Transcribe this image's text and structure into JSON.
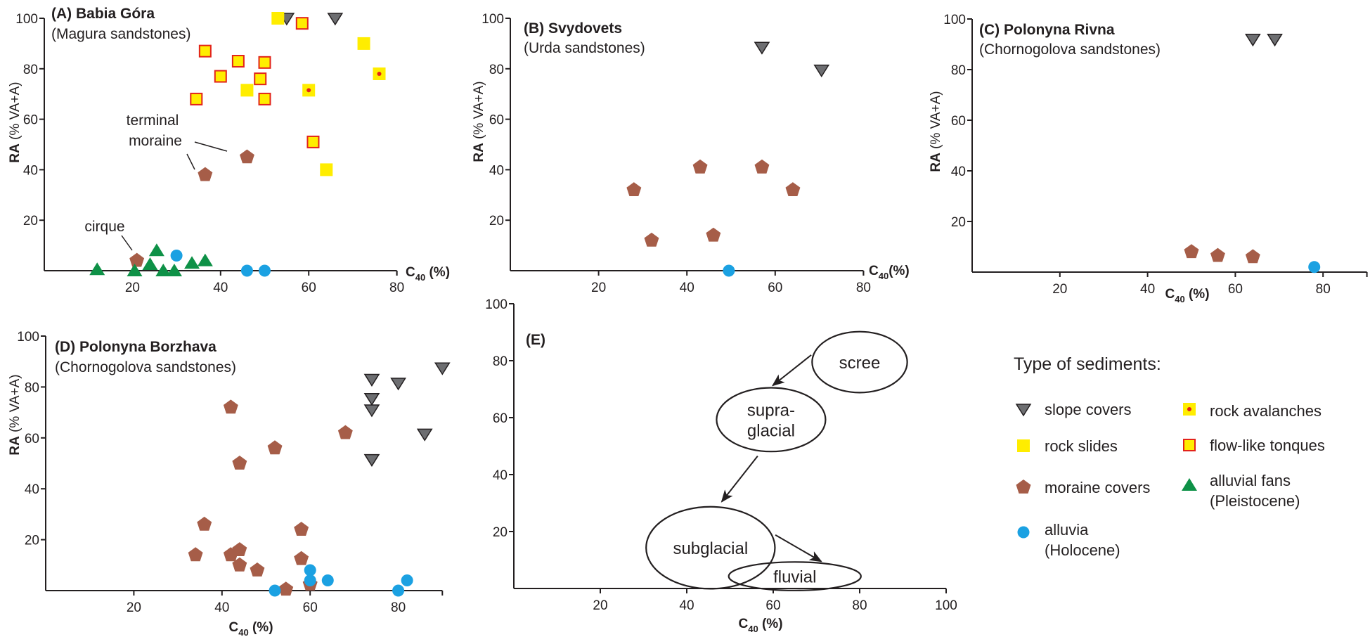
{
  "legend": {
    "title": "Type of sediments:",
    "items": [
      {
        "name": "slope covers",
        "label": [
          "slope covers"
        ],
        "marker": "triangle-down",
        "fill": "#6D6E71",
        "stroke": "#231F20"
      },
      {
        "name": "rock slides",
        "label": [
          "rock slides"
        ],
        "marker": "square",
        "fill": "#FFED00"
      },
      {
        "name": "moraine covers",
        "label": [
          "moraine covers"
        ],
        "marker": "pentagon",
        "fill": "#A65D48"
      },
      {
        "name": "alluvia",
        "label": [
          "alluvia",
          "(Holocene)"
        ],
        "marker": "circle",
        "fill": "#1BA1E2"
      },
      {
        "name": "rock avalanches",
        "label": [
          "rock avalanches"
        ],
        "marker": "square-dot",
        "fill": "#FFED00",
        "dot": "#E2231A"
      },
      {
        "name": "flow-like tonques",
        "label": [
          "flow-like tonques"
        ],
        "marker": "square-outline",
        "fill": "#FFED00",
        "stroke": "#E2231A"
      },
      {
        "name": "alluvial fans",
        "label": [
          "alluvial fans",
          "(Pleistocene)"
        ],
        "marker": "triangle-up",
        "fill": "#0E9147"
      }
    ]
  },
  "chart_data": [
    {
      "type": "scatter",
      "title": "(A) Babia Góra",
      "subtitle": "(Magura sandstones)",
      "xlabel": {
        "main": "C",
        "sub": "40",
        "unit": " (%)"
      },
      "ylabel": {
        "bold": "RA",
        "rest": " (% VA+A)"
      },
      "xlim": [
        0,
        80
      ],
      "ylim": [
        0,
        100
      ],
      "xticks": [
        "20",
        "40",
        "60",
        "80"
      ],
      "yticks": [
        "20",
        "40",
        "60",
        "80",
        "100"
      ],
      "grid": false,
      "annotations": [
        {
          "lines": [
            "terminal",
            "moraine"
          ]
        },
        {
          "lines": [
            "cirque"
          ]
        }
      ],
      "series": [
        {
          "name": "slope covers",
          "points": [
            [
              55,
              100
            ],
            [
              66,
              100
            ]
          ]
        },
        {
          "name": "rock slides",
          "points": [
            [
              53,
              100
            ],
            [
              72.5,
              90
            ],
            [
              46,
              71.5
            ],
            [
              64,
              40
            ]
          ]
        },
        {
          "name": "rock avalanches",
          "points": [
            [
              60,
              71.5
            ],
            [
              76,
              78
            ]
          ]
        },
        {
          "name": "flow-like tonques",
          "points": [
            [
              36.5,
              87
            ],
            [
              44,
              83
            ],
            [
              50,
              82.5
            ],
            [
              40,
              77
            ],
            [
              49,
              76
            ],
            [
              34.5,
              68
            ],
            [
              50,
              68
            ],
            [
              58.5,
              98
            ],
            [
              61,
              51
            ]
          ]
        },
        {
          "name": "moraine covers",
          "points": [
            [
              46,
              45
            ],
            [
              36.5,
              38
            ],
            [
              21,
              4
            ]
          ]
        },
        {
          "name": "alluvial fans",
          "points": [
            [
              12,
              0.5
            ],
            [
              20.5,
              0
            ],
            [
              24,
              2.5
            ],
            [
              25.5,
              8
            ],
            [
              27,
              0
            ],
            [
              29.5,
              0
            ],
            [
              33.5,
              3
            ],
            [
              36.5,
              4
            ]
          ]
        },
        {
          "name": "alluvia",
          "points": [
            [
              30,
              6
            ],
            [
              46,
              0
            ],
            [
              50,
              0
            ]
          ]
        }
      ]
    },
    {
      "type": "scatter",
      "title": "(B) Svydovets",
      "subtitle": "(Urda sandstones)",
      "xlabel": {
        "main": "C",
        "sub": "40",
        "unit": "(%)"
      },
      "ylabel": {
        "bold": "RA",
        "rest": " (% VA+A)"
      },
      "xlim": [
        0,
        80
      ],
      "ylim": [
        0,
        100
      ],
      "xticks": [
        "20",
        "40",
        "60",
        "80"
      ],
      "yticks": [
        "20",
        "40",
        "60",
        "80",
        "100"
      ],
      "grid": false,
      "series": [
        {
          "name": "slope covers",
          "points": [
            [
              57,
              88.5
            ],
            [
              70.5,
              79.5
            ]
          ]
        },
        {
          "name": "moraine covers",
          "points": [
            [
              28,
              32
            ],
            [
              32,
              12
            ],
            [
              43,
              41
            ],
            [
              46,
              14
            ],
            [
              57,
              41
            ],
            [
              64,
              32
            ]
          ]
        },
        {
          "name": "alluvia",
          "points": [
            [
              49.5,
              0
            ]
          ]
        }
      ]
    },
    {
      "type": "scatter",
      "title": "(C) Polonyna Rivna",
      "subtitle": "(Chornogolova sandstones)",
      "xlabel": {
        "main": "C",
        "sub": "40",
        "unit": " (%)"
      },
      "ylabel": {
        "bold": "RA",
        "rest": " (% VA+A)"
      },
      "xlim": [
        0,
        90
      ],
      "ylim": [
        0,
        100
      ],
      "xticks": [
        "20",
        "40",
        "60",
        "80"
      ],
      "yticks": [
        "20",
        "40",
        "60",
        "80",
        "100"
      ],
      "grid": false,
      "series": [
        {
          "name": "slope covers",
          "points": [
            [
              64,
              92
            ],
            [
              69,
              92
            ]
          ]
        },
        {
          "name": "moraine covers",
          "points": [
            [
              50,
              8
            ],
            [
              56,
              6.5
            ],
            [
              64,
              6
            ]
          ]
        },
        {
          "name": "alluvia",
          "points": [
            [
              78,
              2
            ]
          ]
        }
      ]
    },
    {
      "type": "scatter",
      "title": "(D) Polonyna Borzhava",
      "subtitle": "(Chornogolova sandstones)",
      "xlabel": {
        "main": "C",
        "sub": "40",
        "unit": " (%)"
      },
      "ylabel": {
        "bold": "RA",
        "rest": " (% VA+A)"
      },
      "xlim": [
        0,
        90
      ],
      "ylim": [
        0,
        100
      ],
      "xticks": [
        "20",
        "40",
        "60",
        "80"
      ],
      "yticks": [
        "20",
        "40",
        "60",
        "80",
        "100"
      ],
      "grid": false,
      "series": [
        {
          "name": "slope covers",
          "points": [
            [
              74,
              83
            ],
            [
              80,
              81.5
            ],
            [
              74,
              75.5
            ],
            [
              74,
              71
            ],
            [
              90,
              87.5
            ],
            [
              86,
              61.5
            ],
            [
              74,
              51.5
            ]
          ]
        },
        {
          "name": "moraine covers",
          "points": [
            [
              42,
              72
            ],
            [
              68,
              62
            ],
            [
              52,
              56
            ],
            [
              44,
              50
            ],
            [
              36,
              26
            ],
            [
              58,
              24
            ],
            [
              34,
              14
            ],
            [
              42,
              14
            ],
            [
              44,
              16
            ],
            [
              44,
              10
            ],
            [
              48,
              8
            ],
            [
              58,
              12.5
            ],
            [
              54.5,
              0.5
            ],
            [
              60,
              2.5
            ]
          ]
        },
        {
          "name": "alluvia",
          "points": [
            [
              52,
              0
            ],
            [
              60,
              8
            ],
            [
              60,
              4
            ],
            [
              64,
              4
            ],
            [
              80,
              0
            ],
            [
              82,
              4
            ]
          ]
        }
      ]
    },
    {
      "type": "diagram",
      "title": "(E)",
      "xlabel": {
        "main": "C",
        "sub": "40",
        "unit": " (%)"
      },
      "xlim": [
        0,
        100
      ],
      "ylim": [
        0,
        100
      ],
      "xticks": [
        "20",
        "40",
        "60",
        "80",
        "100"
      ],
      "yticks": [
        "20",
        "40",
        "60",
        "80",
        "100"
      ],
      "grid": false,
      "fields": [
        {
          "lines": [
            "scree"
          ],
          "cx": 80,
          "cy": 79.5,
          "rx": 11,
          "ry": 10.7
        },
        {
          "lines": [
            "supra-",
            "glacial"
          ],
          "cx": 59.5,
          "cy": 59.3,
          "rx": 12.6,
          "ry": 11.2
        },
        {
          "lines": [
            "subglacial"
          ],
          "cx": 45.5,
          "cy": 14.3,
          "rx": 14.9,
          "ry": 14.4
        },
        {
          "lines": [
            "fluvial"
          ],
          "cx": 65,
          "cy": 4.3,
          "rx": 15.3,
          "ry": 5
        }
      ],
      "arrows": [
        {
          "from": [
            68.8,
            82
          ],
          "to": [
            59.9,
            71.3
          ]
        },
        {
          "from": [
            56.4,
            46.5
          ],
          "to": [
            48.1,
            30.5
          ]
        },
        {
          "from": [
            60.5,
            18.8
          ],
          "to": [
            71.1,
            9.5
          ]
        }
      ]
    }
  ]
}
